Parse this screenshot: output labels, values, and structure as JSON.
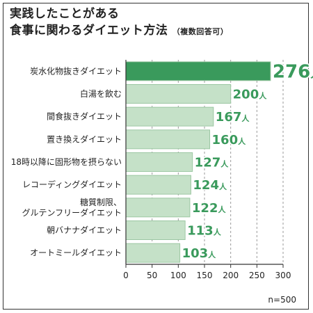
{
  "chart_data": {
    "type": "bar",
    "orientation": "horizontal",
    "title_line1": "実践したことがある",
    "title_line2": "食事に関わるダイエット方法",
    "title_note": "（複数回答可）",
    "categories": [
      "炭水化物抜きダイエット",
      "白湯を飲む",
      "間食抜きダイエット",
      "置き換えダイエット",
      "18時以降に固形物を摂らない",
      "レコーディングダイエット",
      "糖質制限、\nグルテンフリーダイエット",
      "朝バナナダイエット",
      "オートミールダイエット"
    ],
    "values": [
      276,
      200,
      167,
      160,
      127,
      124,
      122,
      113,
      103
    ],
    "value_unit": "人",
    "xlim": [
      0,
      300
    ],
    "xticks": [
      0,
      50,
      100,
      150,
      200,
      250,
      300
    ],
    "grid": "vertical-dashed",
    "highlight_index": 0,
    "sample_note": "n=500",
    "colors": {
      "highlight_bar": "#3a9a5c",
      "bar": "#c5e1c8",
      "bar_edge": "#9cc7a3",
      "label": "#3a9a5c",
      "axis": "#333333",
      "grid": "#999999"
    }
  }
}
